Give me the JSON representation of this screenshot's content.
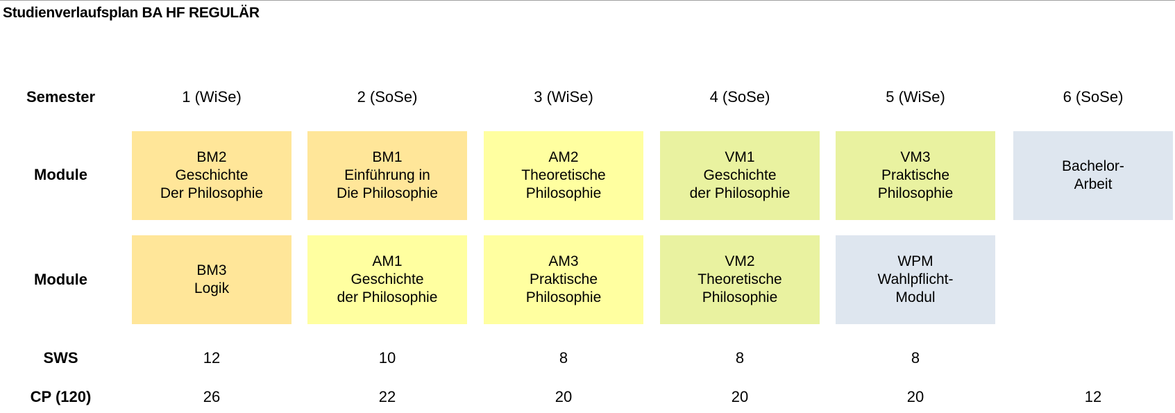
{
  "title": "Studienverlaufsplan BA HF REGULÄR",
  "row_labels": {
    "semester": "Semester",
    "module1": "Module",
    "module2": "Module",
    "sws": "SWS",
    "cp": "CP (120)"
  },
  "colors": {
    "basis": "#FFE699",
    "aufbau": "#FFFFA0",
    "vertiefung": "#E9F2A0",
    "other": "#DEE6EF"
  },
  "semesters": [
    "1 (WiSe)",
    "2 (SoSe)",
    "3 (WiSe)",
    "4 (SoSe)",
    "5 (WiSe)",
    "6 (SoSe)"
  ],
  "modules_row1": [
    {
      "text": "BM2\nGeschichte\nDer Philosophie",
      "color": "#FFE699"
    },
    {
      "text": "BM1\nEinführung in\nDie Philosophie",
      "color": "#FFE699"
    },
    {
      "text": "AM2\nTheoretische\nPhilosophie",
      "color": "#FFFFA0"
    },
    {
      "text": "VM1\nGeschichte\nder Philosophie",
      "color": "#E9F2A0"
    },
    {
      "text": "VM3\nPraktische\nPhilosophie",
      "color": "#E9F2A0"
    },
    {
      "text": "Bachelor-\nArbeit",
      "color": "#DEE6EF"
    }
  ],
  "modules_row2": [
    {
      "text": "BM3\nLogik",
      "color": "#FFE699"
    },
    {
      "text": "AM1\nGeschichte\nder Philosophie",
      "color": "#FFFFA0"
    },
    {
      "text": "AM3\nPraktische\nPhilosophie",
      "color": "#FFFFA0"
    },
    {
      "text": "VM2\nTheoretische\nPhilosophie",
      "color": "#E9F2A0"
    },
    {
      "text": "WPM\nWahlpflicht-\nModul",
      "color": "#DEE6EF"
    }
  ],
  "sws": [
    "12",
    "10",
    "8",
    "8",
    "8",
    ""
  ],
  "cp": [
    "26",
    "22",
    "20",
    "20",
    "20",
    "12"
  ]
}
